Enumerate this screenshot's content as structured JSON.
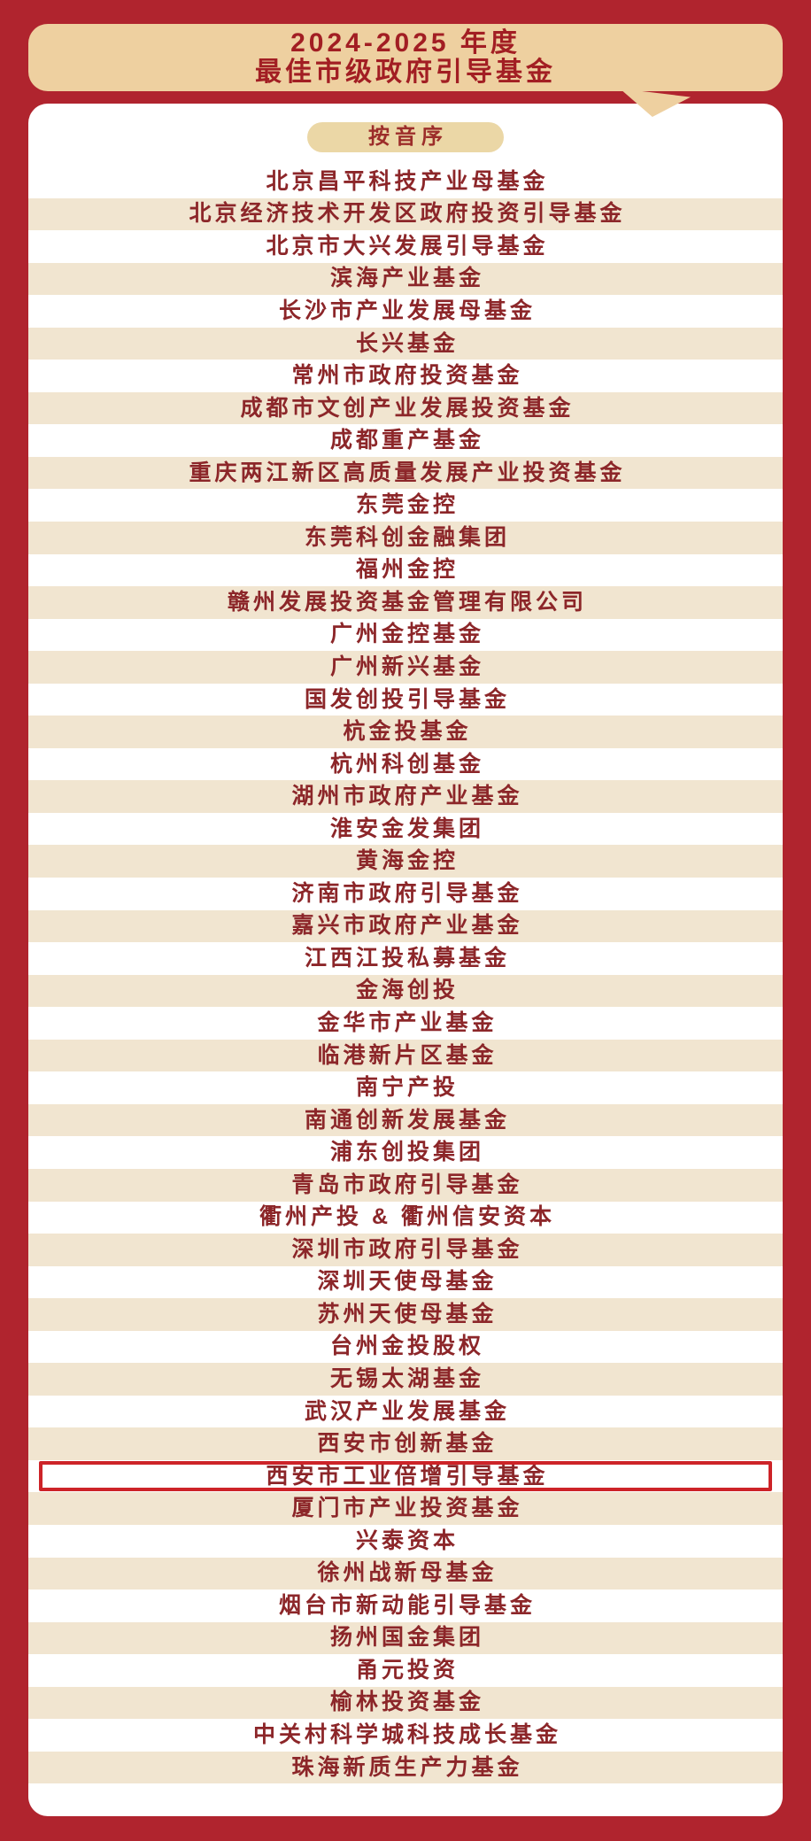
{
  "poster": {
    "title_line1": "2024-2025 年度",
    "title_line2": "最佳市级政府引导基金",
    "sort_label": "按音序",
    "highlighted_fund": "西安市工业倍增引导基金",
    "funds": [
      "北京昌平科技产业母基金",
      "北京经济技术开发区政府投资引导基金",
      "北京市大兴发展引导基金",
      "滨海产业基金",
      "长沙市产业发展母基金",
      "长兴基金",
      "常州市政府投资基金",
      "成都市文创产业发展投资基金",
      "成都重产基金",
      "重庆两江新区高质量发展产业投资基金",
      "东莞金控",
      "东莞科创金融集团",
      "福州金控",
      "赣州发展投资基金管理有限公司",
      "广州金控基金",
      "广州新兴基金",
      "国发创投引导基金",
      "杭金投基金",
      "杭州科创基金",
      "湖州市政府产业基金",
      "淮安金发集团",
      "黄海金控",
      "济南市政府引导基金",
      "嘉兴市政府产业基金",
      "江西江投私募基金",
      "金海创投",
      "金华市产业基金",
      "临港新片区基金",
      "南宁产投",
      "南通创新发展基金",
      "浦东创投集团",
      "青岛市政府引导基金",
      "衢州产投 & 衢州信安资本",
      "深圳市政府引导基金",
      "深圳天使母基金",
      "苏州天使母基金",
      "台州金投股权",
      "无锡太湖基金",
      "武汉产业发展基金",
      "西安市创新基金",
      "西安市工业倍增引导基金",
      "厦门市产业投资基金",
      "兴泰资本",
      "徐州战新母基金",
      "烟台市新动能引导基金",
      "扬州国金集团",
      "甬元投资",
      "榆林投资基金",
      "中关村科学城科技成长基金",
      "珠海新质生产力基金"
    ]
  },
  "colors": {
    "frame_red": "#b0242e",
    "banner_tan": "#eed0a0",
    "pill_tan": "#ebd7a6",
    "stripe_beige": "#f1e5d0",
    "title_red": "#a21e23",
    "text_maroon": "#8c2629",
    "highlight_border": "#cd2328",
    "card_white": "#ffffff"
  }
}
